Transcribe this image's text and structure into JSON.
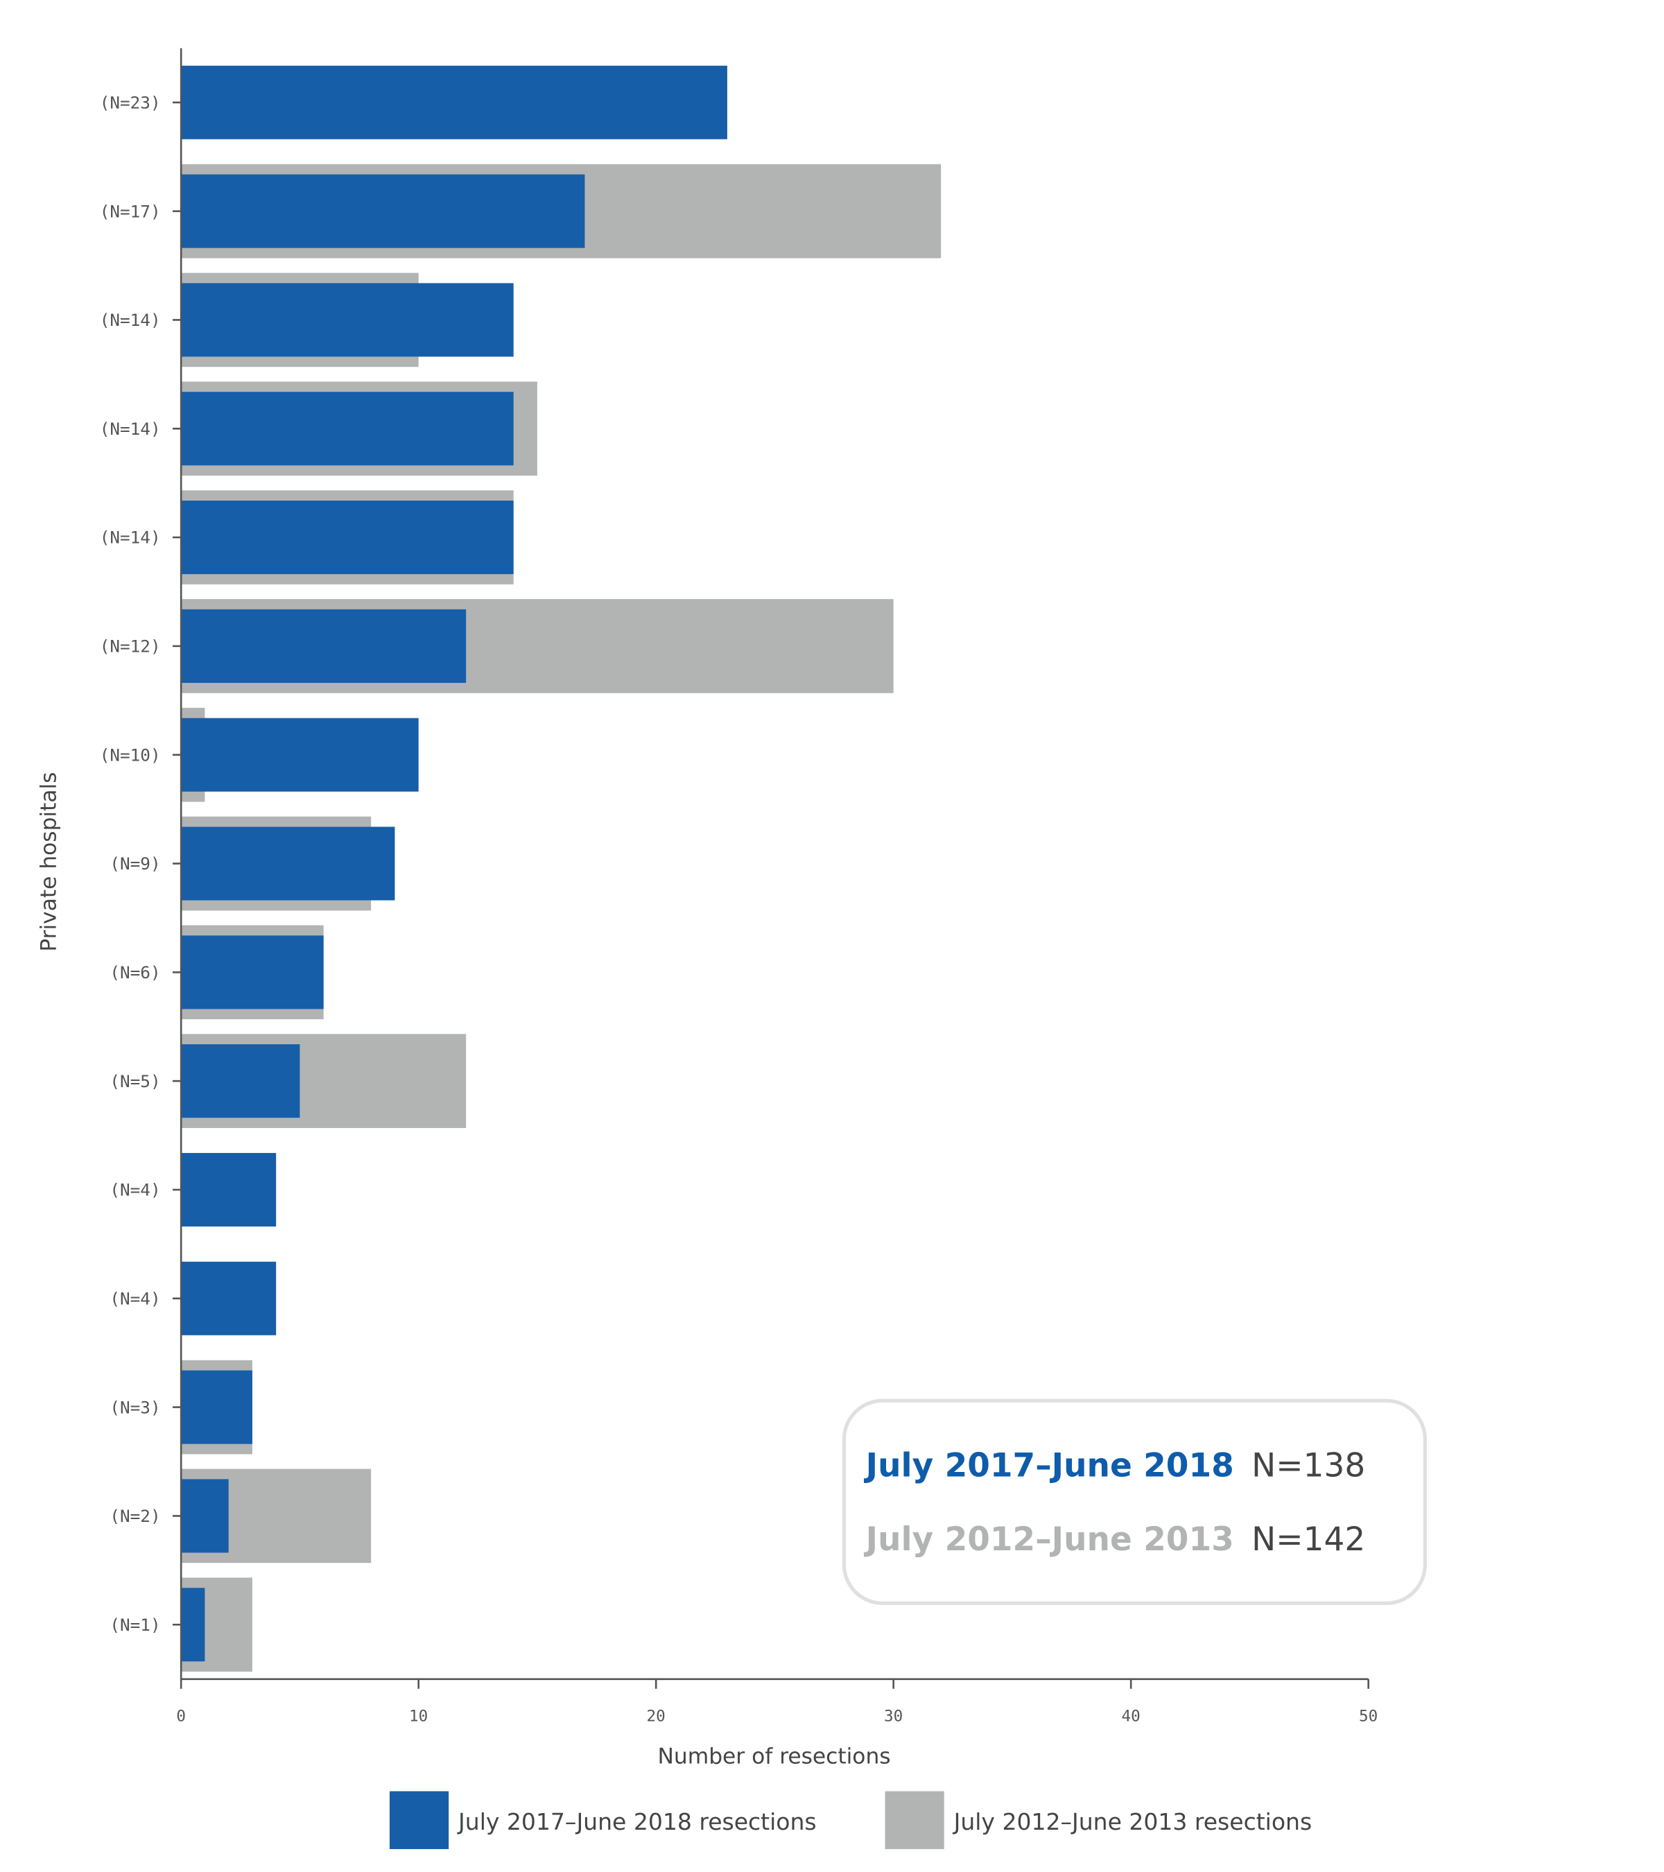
{
  "chart_data": {
    "type": "bar",
    "orientation": "horizontal",
    "ylabel": "Private hospitals",
    "xlabel": "Number of resections",
    "xlim": [
      0,
      50
    ],
    "xticks": [
      0,
      10,
      20,
      30,
      40,
      50
    ],
    "grid": false,
    "categories": [
      "(N=23)",
      "(N=17)",
      "(N=14)",
      "(N=14)",
      "(N=14)",
      "(N=12)",
      "(N=10)",
      "(N=9)",
      "(N=6)",
      "(N=5)",
      "(N=4)",
      "(N=4)",
      "(N=3)",
      "(N=2)",
      "(N=1)"
    ],
    "series": [
      {
        "name": "July 2012–June 2013 resections",
        "color": "#b2b4b4",
        "values": [
          0,
          32,
          10,
          15,
          14,
          30,
          1,
          8,
          6,
          12,
          0,
          0,
          3,
          8,
          3
        ]
      },
      {
        "name": "July 2017–June 2018 resections",
        "color": "#175ea8",
        "values": [
          23,
          17,
          14,
          14,
          14,
          12,
          10,
          9,
          6,
          5,
          4,
          4,
          3,
          2,
          1
        ]
      }
    ],
    "legend_position": "bottom",
    "annotation": {
      "line1_label": "July 2017–June 2018",
      "line1_value": "N=138",
      "line1_color": "#0e5cab",
      "line2_label": "July 2012–June 2013",
      "line2_value": "N=142",
      "line2_color": "#b2b4b4"
    }
  }
}
